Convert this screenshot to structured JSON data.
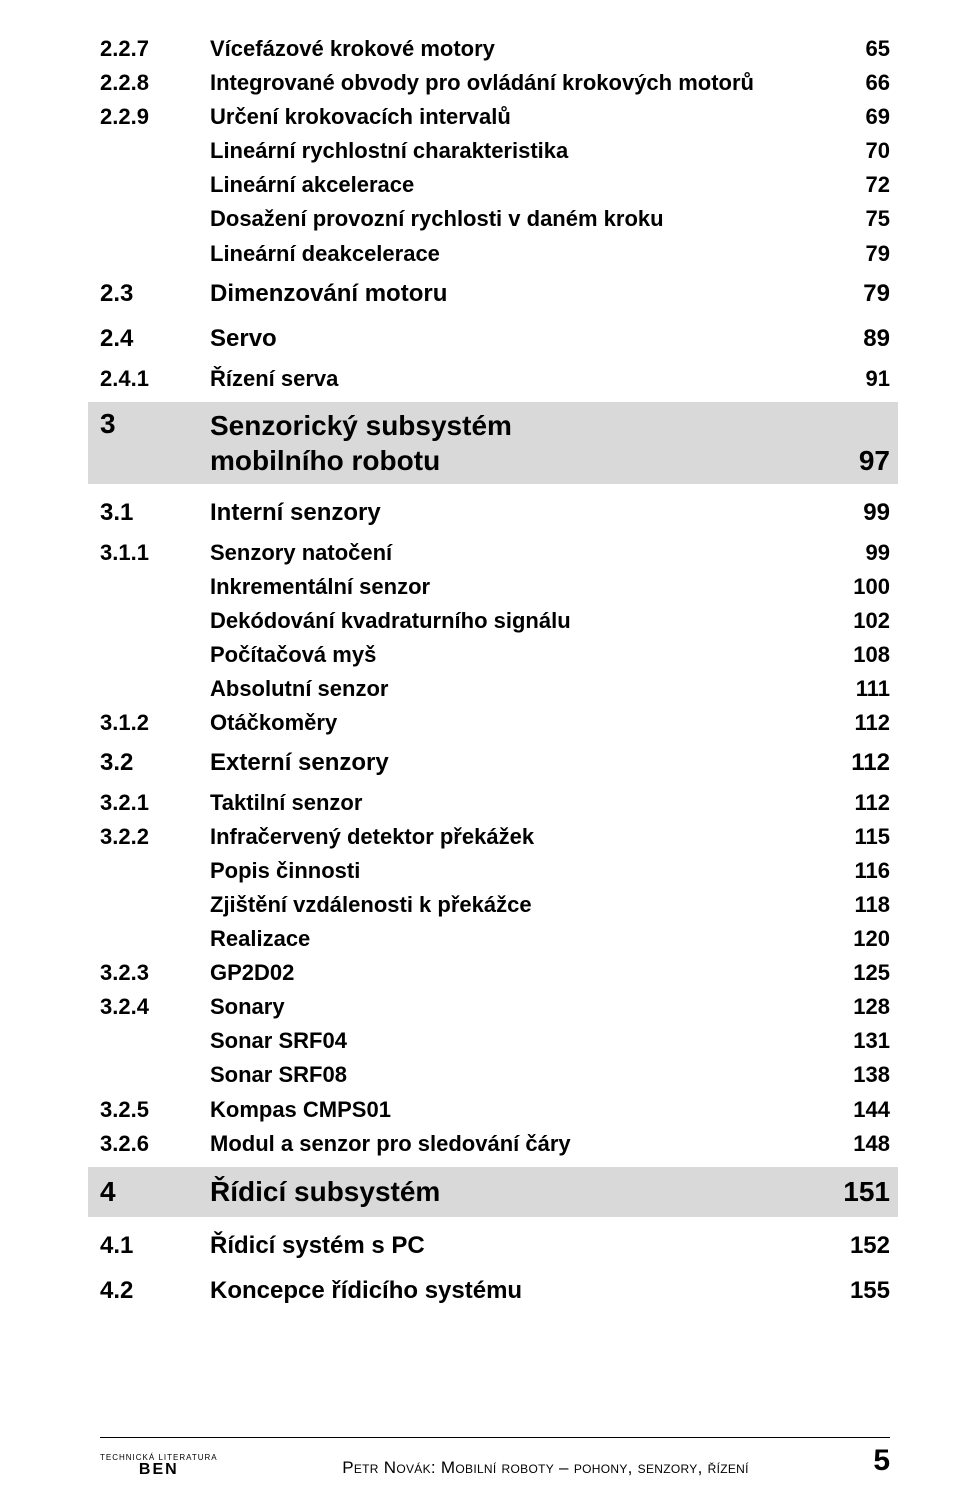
{
  "toc": [
    {
      "type": "sub",
      "num": "2.2.7",
      "label": "Vícefázové krokové motory",
      "page": "65"
    },
    {
      "type": "sub",
      "num": "2.2.8",
      "label": "Integrované obvody pro ovládání krokových motorů",
      "page": "66"
    },
    {
      "type": "sub",
      "num": "2.2.9",
      "label": "Určení krokovacích intervalů",
      "page": "69"
    },
    {
      "type": "sub4",
      "num": "",
      "label": "Lineární rychlostní charakteristika",
      "page": "70"
    },
    {
      "type": "sub4",
      "num": "",
      "label": "Lineární akcelerace",
      "page": "72"
    },
    {
      "type": "sub4",
      "num": "",
      "label": "Dosažení provozní rychlosti v daném kroku",
      "page": "75"
    },
    {
      "type": "sub4",
      "num": "",
      "label": "Lineární deakcelerace",
      "page": "79"
    },
    {
      "type": "sec",
      "num": "2.3",
      "label": "Dimenzování motoru",
      "page": "79"
    },
    {
      "type": "sec",
      "num": "2.4",
      "label": "Servo",
      "page": "89"
    },
    {
      "type": "sub",
      "num": "2.4.1",
      "label": "Řízení serva",
      "page": "91"
    },
    {
      "type": "chap2",
      "num": "3",
      "label1": "Senzorický subsystém",
      "label2": "mobilního robotu",
      "page": "97"
    },
    {
      "type": "sec",
      "num": "3.1",
      "label": "Interní senzory",
      "page": "99"
    },
    {
      "type": "sub",
      "num": "3.1.1",
      "label": "Senzory natočení",
      "page": "99"
    },
    {
      "type": "sub4",
      "num": "",
      "label": "Inkrementální senzor",
      "page": "100"
    },
    {
      "type": "sub4",
      "num": "",
      "label": "Dekódování kvadraturního signálu",
      "page": "102"
    },
    {
      "type": "sub4",
      "num": "",
      "label": "Počítačová myš",
      "page": "108"
    },
    {
      "type": "sub4",
      "num": "",
      "label": "Absolutní senzor",
      "page": "111"
    },
    {
      "type": "sub",
      "num": "3.1.2",
      "label": "Otáčkoměry",
      "page": "112"
    },
    {
      "type": "sec",
      "num": "3.2",
      "label": "Externí senzory",
      "page": "112"
    },
    {
      "type": "sub",
      "num": "3.2.1",
      "label": "Taktilní senzor",
      "page": "112"
    },
    {
      "type": "sub",
      "num": "3.2.2",
      "label": "Infračervený detektor překážek",
      "page": "115"
    },
    {
      "type": "sub4",
      "num": "",
      "label": "Popis činnosti",
      "page": "116"
    },
    {
      "type": "sub4",
      "num": "",
      "label": "Zjištění vzdálenosti k překážce",
      "page": "118"
    },
    {
      "type": "sub4",
      "num": "",
      "label": "Realizace",
      "page": "120"
    },
    {
      "type": "sub",
      "num": "3.2.3",
      "label": "GP2D02",
      "page": "125"
    },
    {
      "type": "sub",
      "num": "3.2.4",
      "label": "Sonary",
      "page": "128"
    },
    {
      "type": "sub4",
      "num": "",
      "label": "Sonar SRF04",
      "page": "131"
    },
    {
      "type": "sub4",
      "num": "",
      "label": "Sonar SRF08",
      "page": "138"
    },
    {
      "type": "sub",
      "num": "3.2.5",
      "label": "Kompas CMPS01",
      "page": "144"
    },
    {
      "type": "sub",
      "num": "3.2.6",
      "label": "Modul a senzor pro sledování čáry",
      "page": "148"
    },
    {
      "type": "chap",
      "num": "4",
      "label": "Řídicí subsystém",
      "page": "151"
    },
    {
      "type": "sec",
      "num": "4.1",
      "label": "Řídicí systém s PC",
      "page": "152"
    },
    {
      "type": "sec",
      "num": "4.2",
      "label": "Koncepce řídicího systému",
      "page": "155"
    }
  ],
  "footer": {
    "logo_top": "TECHNICKÁ LITERATURA",
    "logo_main": "BEN",
    "title": "Petr Novák: Mobilní roboty – pohony, senzory, řízení",
    "page": "5"
  }
}
